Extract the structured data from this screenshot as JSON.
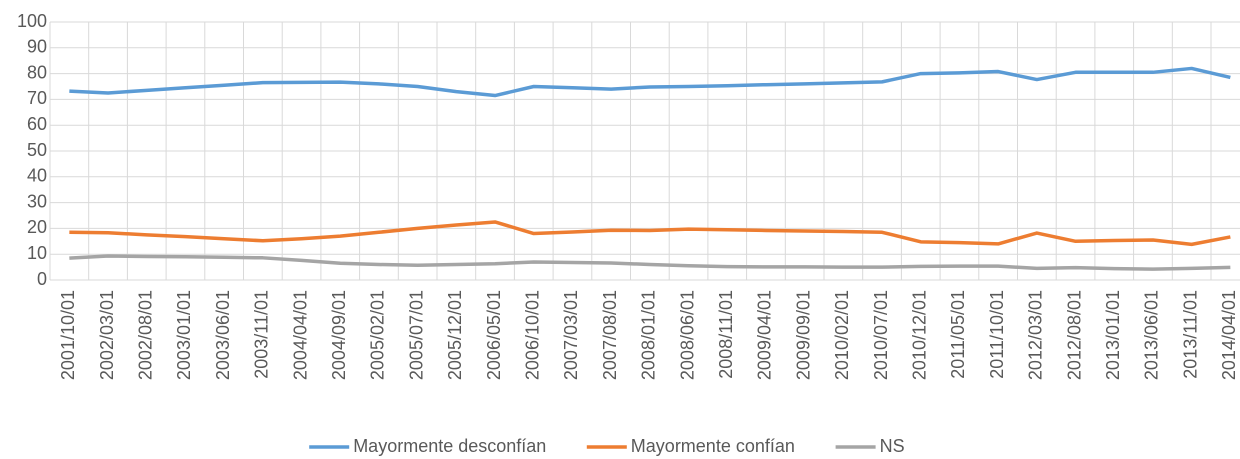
{
  "chart_data": {
    "type": "line",
    "categories": [
      "2001/10/01",
      "2002/03/01",
      "2002/08/01",
      "2003/01/01",
      "2003/06/01",
      "2003/11/01",
      "2004/04/01",
      "2004/09/01",
      "2005/02/01",
      "2005/07/01",
      "2005/12/01",
      "2006/05/01",
      "2006/10/01",
      "2007/03/01",
      "2007/08/01",
      "2008/01/01",
      "2008/06/01",
      "2008/11/01",
      "2009/04/01",
      "2009/09/01",
      "2010/02/01",
      "2010/07/01",
      "2010/12/01",
      "2011/05/01",
      "2011/10/01",
      "2012/03/01",
      "2012/08/01",
      "2013/01/01",
      "2013/06/01",
      "2013/11/01",
      "2014/04/01"
    ],
    "series": [
      {
        "name": "Mayormente desconfían",
        "color": "#5b9bd5",
        "values": [
          73.2,
          72.5,
          73.5,
          74.5,
          75.5,
          76.5,
          76.6,
          76.7,
          76,
          75,
          73,
          71.5,
          75,
          74.5,
          74,
          74.8,
          75,
          75.3,
          75.7,
          76,
          76.4,
          76.8,
          80,
          80.3,
          80.8,
          77.7,
          80.5,
          80.5,
          80.5,
          82,
          78.5
        ]
      },
      {
        "name": "Mayormente confían",
        "color": "#ed7d31",
        "values": [
          18.5,
          18.3,
          17.5,
          16.8,
          16,
          15.2,
          16,
          17,
          18.5,
          20,
          21.3,
          22.5,
          18,
          18.6,
          19.3,
          19.2,
          19.7,
          19.5,
          19.2,
          19,
          18.8,
          18.5,
          14.8,
          14.5,
          14,
          18.2,
          15,
          15.3,
          15.5,
          13.8,
          16.7
        ]
      },
      {
        "name": "NS",
        "color": "#a5a5a5",
        "values": [
          8.5,
          9.3,
          9.1,
          9,
          8.8,
          8.6,
          7.6,
          6.5,
          6,
          5.7,
          6,
          6.3,
          7,
          6.8,
          6.6,
          6,
          5.5,
          5.2,
          5.1,
          5.1,
          5,
          5,
          5.3,
          5.4,
          5.4,
          4.5,
          4.8,
          4.4,
          4.2,
          4.5,
          4.9
        ]
      }
    ],
    "ylim": [
      0,
      100
    ],
    "yticks": [
      0,
      10,
      20,
      30,
      40,
      50,
      60,
      70,
      80,
      90,
      100
    ],
    "grid": true,
    "legend": "bottom"
  }
}
